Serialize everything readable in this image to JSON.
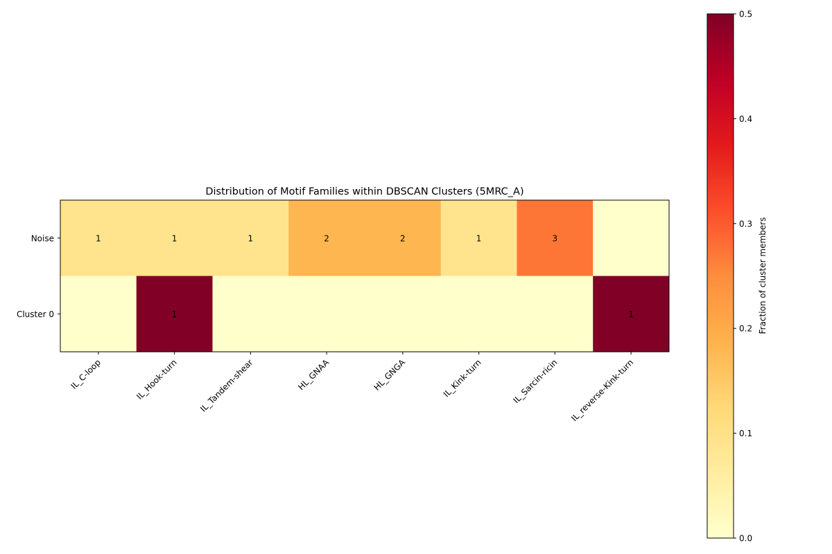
{
  "chart_data": {
    "type": "heatmap",
    "title": "Distribution of Motif Families within DBSCAN Clusters (5MRC_A)",
    "x_categories": [
      "IL_C-loop",
      "IL_Hook-turn",
      "IL_Tandem-shear",
      "HL_GNAA",
      "HL_GNGA",
      "IL_Kink-turn",
      "IL_Sarcin-ricin",
      "IL_reverse-Kink-turn"
    ],
    "y_categories": [
      "Noise",
      "Cluster 0"
    ],
    "counts": [
      [
        1,
        1,
        1,
        2,
        2,
        1,
        3,
        0
      ],
      [
        0,
        1,
        0,
        0,
        0,
        0,
        0,
        1
      ]
    ],
    "fractions": [
      [
        0.0909,
        0.0909,
        0.0909,
        0.1818,
        0.1818,
        0.0909,
        0.2727,
        0.0
      ],
      [
        0.0,
        0.5,
        0.0,
        0.0,
        0.0,
        0.0,
        0.0,
        0.5
      ]
    ],
    "colorbar": {
      "label": "Fraction of cluster members",
      "min": 0.0,
      "max": 0.5,
      "ticks": [
        "0.0",
        "0.1",
        "0.2",
        "0.3",
        "0.4",
        "0.5"
      ],
      "colormap": "YlOrRd",
      "stops": [
        "#ffffcc",
        "#ffeda0",
        "#fed976",
        "#feb24c",
        "#fd8d3c",
        "#fc4e2a",
        "#e31a1c",
        "#bd0026",
        "#800026"
      ]
    }
  }
}
